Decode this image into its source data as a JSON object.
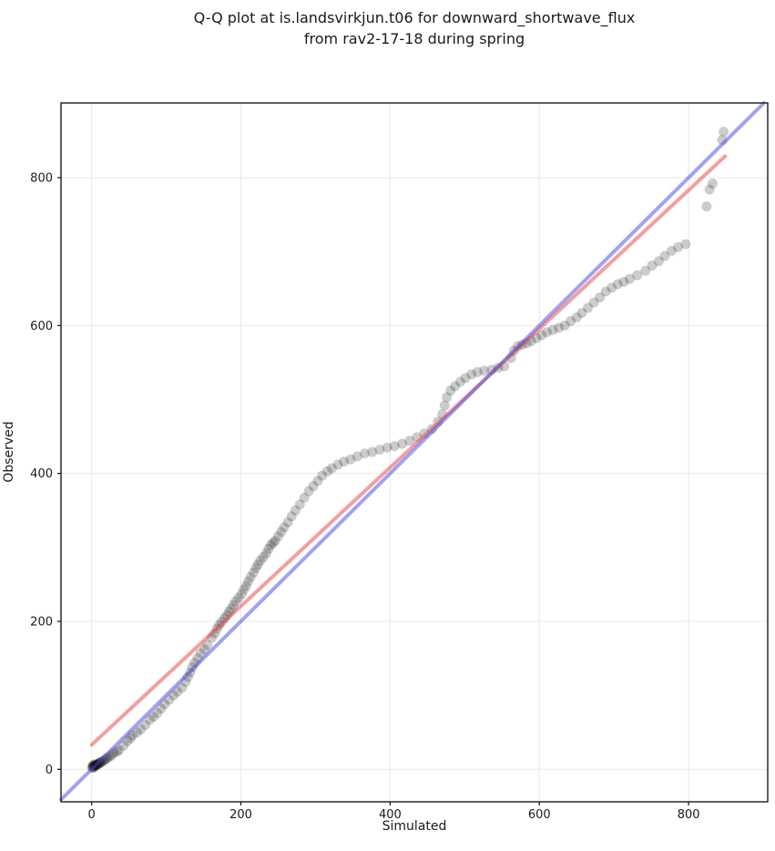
{
  "title": {
    "line1": "Q-Q plot at is.landsvirkjun.t06 for downward_shortwave_flux",
    "line2": "from rav2-17-18 during spring"
  },
  "chart_data": {
    "type": "scatter",
    "subtype": "qq-plot",
    "xlabel": "Simulated",
    "ylabel": "Observed",
    "xlim": [
      -41,
      906
    ],
    "ylim": [
      -44,
      901
    ],
    "x_ticks": [
      0,
      200,
      400,
      600,
      800
    ],
    "y_ticks": [
      0,
      200,
      400,
      600,
      800
    ],
    "grid": true,
    "grid_color": "#e8e8e8",
    "axis_color": "#1a1a1a",
    "tick_label_color": "#1a1a1a",
    "identity_line": {
      "endpoints": [
        [
          -41,
          -41
        ],
        [
          901,
          901
        ]
      ],
      "color": "#4646e8",
      "opacity": 0.5,
      "width": 4
    },
    "fit_line": {
      "slope": 0.938,
      "intercept": 33,
      "endpoints": [
        [
          0,
          33
        ],
        [
          849,
          829
        ]
      ],
      "color": "#e84040",
      "opacity": 0.5,
      "width": 4
    },
    "marker": {
      "radius": 5.5,
      "color": "#000000",
      "opacity": 0.2
    },
    "points": [
      [
        1,
        2
      ],
      [
        1,
        4
      ],
      [
        2,
        2
      ],
      [
        2,
        5
      ],
      [
        3,
        3
      ],
      [
        3,
        6
      ],
      [
        4,
        4
      ],
      [
        5,
        5
      ],
      [
        5,
        7
      ],
      [
        6,
        5
      ],
      [
        7,
        6
      ],
      [
        8,
        7
      ],
      [
        9,
        7
      ],
      [
        10,
        8
      ],
      [
        11,
        9
      ],
      [
        12,
        9
      ],
      [
        13,
        10
      ],
      [
        15,
        11
      ],
      [
        17,
        12
      ],
      [
        19,
        14
      ],
      [
        21,
        15
      ],
      [
        24,
        17
      ],
      [
        27,
        19
      ],
      [
        30,
        22
      ],
      [
        34,
        24
      ],
      [
        37,
        26
      ],
      [
        43,
        32
      ],
      [
        48,
        38
      ],
      [
        52,
        42
      ],
      [
        55,
        46
      ],
      [
        61,
        50
      ],
      [
        66,
        54
      ],
      [
        72,
        60
      ],
      [
        78,
        67
      ],
      [
        83,
        71
      ],
      [
        88,
        76
      ],
      [
        93,
        82
      ],
      [
        98,
        88
      ],
      [
        104,
        94
      ],
      [
        110,
        100
      ],
      [
        115,
        105
      ],
      [
        121,
        110
      ],
      [
        126,
        118
      ],
      [
        129,
        125
      ],
      [
        132,
        131
      ],
      [
        135,
        138
      ],
      [
        138,
        144
      ],
      [
        142,
        150
      ],
      [
        146,
        157
      ],
      [
        151,
        162
      ],
      [
        155,
        168
      ],
      [
        161,
        178
      ],
      [
        165,
        184
      ],
      [
        168,
        190
      ],
      [
        171,
        195
      ],
      [
        174,
        199
      ],
      [
        178,
        204
      ],
      [
        181,
        208
      ],
      [
        184,
        213
      ],
      [
        187,
        217
      ],
      [
        190,
        222
      ],
      [
        193,
        227
      ],
      [
        197,
        232
      ],
      [
        201,
        237
      ],
      [
        204,
        243
      ],
      [
        207,
        248
      ],
      [
        210,
        254
      ],
      [
        213,
        260
      ],
      [
        217,
        266
      ],
      [
        220,
        272
      ],
      [
        223,
        277
      ],
      [
        226,
        282
      ],
      [
        230,
        287
      ],
      [
        234,
        292
      ],
      [
        237,
        298
      ],
      [
        240,
        303
      ],
      [
        243,
        306
      ],
      [
        246,
        309
      ],
      [
        250,
        315
      ],
      [
        254,
        321
      ],
      [
        258,
        327
      ],
      [
        263,
        334
      ],
      [
        268,
        342
      ],
      [
        273,
        350
      ],
      [
        279,
        358
      ],
      [
        285,
        367
      ],
      [
        291,
        376
      ],
      [
        297,
        383
      ],
      [
        303,
        390
      ],
      [
        309,
        397
      ],
      [
        316,
        403
      ],
      [
        322,
        407
      ],
      [
        330,
        412
      ],
      [
        338,
        416
      ],
      [
        347,
        419
      ],
      [
        356,
        423
      ],
      [
        366,
        427
      ],
      [
        376,
        429
      ],
      [
        386,
        432
      ],
      [
        396,
        435
      ],
      [
        406,
        437
      ],
      [
        416,
        440
      ],
      [
        426,
        444
      ],
      [
        436,
        449
      ],
      [
        446,
        454
      ],
      [
        456,
        460
      ],
      [
        464,
        470
      ],
      [
        470,
        480
      ],
      [
        473,
        492
      ],
      [
        476,
        503
      ],
      [
        481,
        512
      ],
      [
        487,
        518
      ],
      [
        494,
        524
      ],
      [
        501,
        529
      ],
      [
        509,
        534
      ],
      [
        517,
        537
      ],
      [
        526,
        539
      ],
      [
        536,
        540
      ],
      [
        545,
        543
      ],
      [
        553,
        545
      ],
      [
        562,
        556
      ],
      [
        566,
        566
      ],
      [
        571,
        572
      ],
      [
        577,
        574
      ],
      [
        583,
        576
      ],
      [
        589,
        579
      ],
      [
        596,
        583
      ],
      [
        603,
        587
      ],
      [
        610,
        591
      ],
      [
        618,
        594
      ],
      [
        626,
        597
      ],
      [
        634,
        600
      ],
      [
        642,
        606
      ],
      [
        650,
        611
      ],
      [
        657,
        617
      ],
      [
        665,
        624
      ],
      [
        673,
        631
      ],
      [
        681,
        638
      ],
      [
        689,
        646
      ],
      [
        697,
        651
      ],
      [
        705,
        656
      ],
      [
        713,
        659
      ],
      [
        721,
        663
      ],
      [
        731,
        668
      ],
      [
        742,
        674
      ],
      [
        751,
        681
      ],
      [
        760,
        687
      ],
      [
        768,
        694
      ],
      [
        777,
        701
      ],
      [
        786,
        706
      ],
      [
        796,
        710
      ],
      [
        824,
        761
      ],
      [
        828,
        784
      ],
      [
        832,
        792
      ],
      [
        845,
        851
      ],
      [
        847,
        862
      ]
    ]
  }
}
